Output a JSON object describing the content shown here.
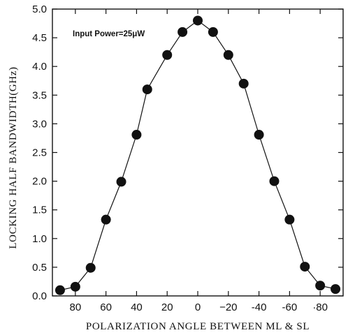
{
  "chart_data": {
    "type": "scatter",
    "title": "",
    "xlabel": "POLARIZATION ANGLE BETWEEN ML & SL",
    "ylabel": "LOCKING HALF BANDWIDTH(GHz)",
    "annotation": "Input Power=25μW",
    "x_reversed": true,
    "xlim": [
      95,
      -95
    ],
    "ylim": [
      0.0,
      5.0
    ],
    "x_ticks": [
      80,
      60,
      40,
      20,
      0,
      -20,
      -40,
      -60,
      -80
    ],
    "x_tick_labels": [
      "80",
      "60",
      "40",
      "20",
      "0",
      "−20",
      "-40",
      "-60",
      "·80"
    ],
    "y_ticks": [
      0.0,
      0.5,
      1.0,
      1.5,
      2.0,
      2.5,
      3.0,
      3.5,
      4.0,
      4.5,
      5.0
    ],
    "y_tick_labels": [
      "0.0",
      "0.5",
      "1.0",
      "1.5",
      "2.0",
      "2.5",
      "3.0",
      "3.5",
      "4.0",
      "4.5",
      "5.0"
    ],
    "grid": false,
    "line_connects_points": true,
    "series": [
      {
        "x": [
          90,
          80,
          70,
          60,
          50,
          40,
          33,
          20,
          10,
          0,
          -10,
          -20,
          -30,
          -40,
          -50,
          -60,
          -70,
          -80,
          -90
        ],
        "y": [
          0.1,
          0.16,
          0.49,
          1.33,
          1.99,
          2.81,
          3.6,
          4.2,
          4.6,
          4.8,
          4.6,
          4.2,
          3.7,
          2.81,
          2.0,
          1.33,
          0.51,
          0.18,
          0.12
        ]
      }
    ],
    "colors": {
      "marker": "#111111",
      "line": "#111111",
      "axis": "#111111"
    }
  }
}
